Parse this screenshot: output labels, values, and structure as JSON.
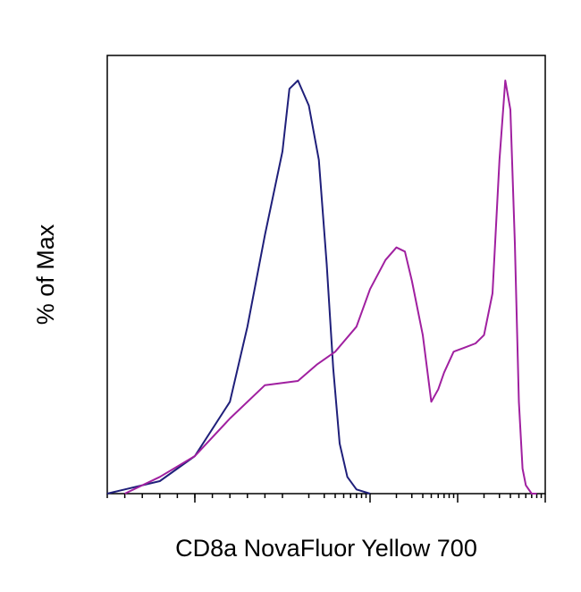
{
  "chart_data": {
    "type": "line",
    "title": "",
    "xlabel": "CD8a NovaFluor Yellow 700",
    "ylabel": "% of Max",
    "x_scale": "log",
    "xlim": [
      -100,
      100000
    ],
    "ylim": [
      0,
      105
    ],
    "grid": false,
    "series": [
      {
        "color": "#1f1f7a",
        "x": [
          -120,
          -80,
          -40,
          0,
          40,
          60,
          80,
          100,
          120,
          150,
          200,
          260,
          320,
          380,
          450,
          550,
          700,
          1000
        ],
        "y": [
          0,
          1,
          3,
          9,
          22,
          40,
          62,
          82,
          97,
          99,
          93,
          80,
          55,
          30,
          12,
          4,
          1,
          0
        ]
      },
      {
        "color": "#a020a0",
        "x": [
          -80,
          -40,
          0,
          40,
          80,
          150,
          250,
          400,
          700,
          1000,
          1500,
          2000,
          2500,
          3000,
          4000,
          5000,
          6000,
          7000,
          9000,
          12000,
          16000,
          20000,
          25000,
          30000,
          35000,
          40000,
          45000,
          50000,
          55000,
          60000,
          70000,
          80000
        ],
        "y": [
          0,
          4,
          9,
          18,
          26,
          27,
          31,
          34,
          40,
          49,
          56,
          59,
          58,
          51,
          38,
          22,
          25,
          29,
          34,
          35,
          36,
          38,
          48,
          80,
          99,
          92,
          60,
          22,
          6,
          2,
          0,
          0
        ]
      }
    ]
  }
}
